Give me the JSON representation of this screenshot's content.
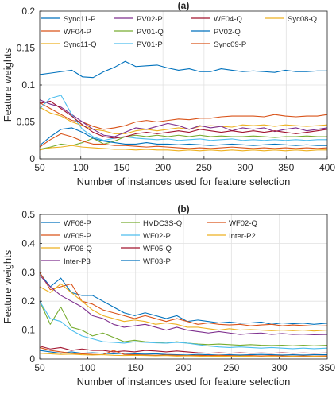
{
  "chart_data": [
    {
      "type": "line",
      "title": "(a)",
      "xlabel": "Number of instances used for feature selection",
      "ylabel": "Feature weights",
      "xlim": [
        50,
        400
      ],
      "ylim": [
        0,
        0.2
      ],
      "xticks": [
        50,
        100,
        150,
        200,
        250,
        300,
        350,
        400
      ],
      "yticks": [
        0,
        0.05,
        0.1,
        0.15,
        0.2
      ],
      "grid": true,
      "legend_placement": "top",
      "x": [
        50,
        63,
        76,
        89,
        102,
        115,
        128,
        141,
        154,
        167,
        180,
        193,
        206,
        219,
        232,
        245,
        258,
        271,
        284,
        297,
        310,
        323,
        336,
        349,
        362,
        375,
        388,
        400
      ],
      "series": [
        {
          "name": "Sync11-P",
          "color": "#0072BD",
          "values": [
            0.114,
            0.116,
            0.118,
            0.12,
            0.111,
            0.11,
            0.118,
            0.124,
            0.132,
            0.125,
            0.126,
            0.127,
            0.123,
            0.12,
            0.122,
            0.118,
            0.118,
            0.122,
            0.12,
            0.118,
            0.119,
            0.118,
            0.117,
            0.12,
            0.118,
            0.118,
            0.119,
            0.119
          ]
        },
        {
          "name": "WF04-P",
          "color": "#D95319",
          "values": [
            0.076,
            0.068,
            0.06,
            0.052,
            0.05,
            0.044,
            0.04,
            0.042,
            0.045,
            0.05,
            0.052,
            0.05,
            0.052,
            0.054,
            0.053,
            0.055,
            0.055,
            0.057,
            0.058,
            0.058,
            0.058,
            0.057,
            0.06,
            0.058,
            0.057,
            0.058,
            0.058,
            0.06
          ]
        },
        {
          "name": "Sync11-Q",
          "color": "#EDB120",
          "values": [
            0.07,
            0.062,
            0.058,
            0.05,
            0.045,
            0.04,
            0.038,
            0.034,
            0.034,
            0.038,
            0.04,
            0.038,
            0.04,
            0.042,
            0.04,
            0.044,
            0.045,
            0.044,
            0.043,
            0.046,
            0.045,
            0.046,
            0.044,
            0.046,
            0.045,
            0.044,
            0.045,
            0.046
          ]
        },
        {
          "name": "PV02-P",
          "color": "#7E2F8E",
          "values": [
            0.08,
            0.074,
            0.07,
            0.06,
            0.05,
            0.04,
            0.032,
            0.03,
            0.036,
            0.042,
            0.04,
            0.044,
            0.048,
            0.045,
            0.04,
            0.045,
            0.042,
            0.044,
            0.038,
            0.042,
            0.04,
            0.042,
            0.037,
            0.04,
            0.042,
            0.038,
            0.04,
            0.042
          ]
        },
        {
          "name": "PV01-Q",
          "color": "#77AC30",
          "values": [
            0.013,
            0.016,
            0.02,
            0.018,
            0.022,
            0.028,
            0.02,
            0.024,
            0.03,
            0.032,
            0.03,
            0.032,
            0.03,
            0.032,
            0.03,
            0.032,
            0.03,
            0.031,
            0.03,
            0.03,
            0.031,
            0.03,
            0.029,
            0.03,
            0.03,
            0.031,
            0.03,
            0.03
          ]
        },
        {
          "name": "PV01-P",
          "color": "#4DBEEE",
          "values": [
            0.068,
            0.082,
            0.086,
            0.06,
            0.04,
            0.03,
            0.025,
            0.028,
            0.03,
            0.028,
            0.027,
            0.026,
            0.027,
            0.025,
            0.026,
            0.027,
            0.025,
            0.026,
            0.027,
            0.025,
            0.026,
            0.025,
            0.026,
            0.025,
            0.026,
            0.025,
            0.026,
            0.026
          ]
        },
        {
          "name": "WF04-Q",
          "color": "#A2142F",
          "values": [
            0.075,
            0.078,
            0.068,
            0.058,
            0.046,
            0.036,
            0.03,
            0.028,
            0.03,
            0.034,
            0.036,
            0.034,
            0.036,
            0.038,
            0.036,
            0.04,
            0.038,
            0.036,
            0.038,
            0.036,
            0.038,
            0.036,
            0.038,
            0.036,
            0.034,
            0.036,
            0.038,
            0.04
          ]
        },
        {
          "name": "PV02-Q",
          "color": "#0072BD",
          "values": [
            0.018,
            0.03,
            0.04,
            0.042,
            0.036,
            0.028,
            0.024,
            0.022,
            0.02,
            0.02,
            0.022,
            0.02,
            0.02,
            0.019,
            0.02,
            0.019,
            0.018,
            0.019,
            0.02,
            0.019,
            0.018,
            0.019,
            0.02,
            0.019,
            0.018,
            0.019,
            0.018,
            0.018
          ]
        },
        {
          "name": "Sync09-P",
          "color": "#D95319",
          "values": [
            0.016,
            0.026,
            0.034,
            0.03,
            0.024,
            0.02,
            0.02,
            0.018,
            0.018,
            0.017,
            0.016,
            0.017,
            0.016,
            0.015,
            0.014,
            0.015,
            0.014,
            0.015,
            0.016,
            0.015,
            0.014,
            0.015,
            0.014,
            0.015,
            0.014,
            0.015,
            0.014,
            0.015
          ]
        },
        {
          "name": "Syc08-Q",
          "color": "#EDB120",
          "values": [
            0.012,
            0.015,
            0.016,
            0.018,
            0.016,
            0.015,
            0.014,
            0.013,
            0.013,
            0.012,
            0.013,
            0.012,
            0.012,
            0.011,
            0.012,
            0.011,
            0.012,
            0.011,
            0.012,
            0.011,
            0.012,
            0.011,
            0.012,
            0.011,
            0.012,
            0.011,
            0.012,
            0.012
          ]
        }
      ]
    },
    {
      "type": "line",
      "title": "(b)",
      "xlabel": "Number of instances used for feature selection",
      "ylabel": "Feature weights",
      "xlim": [
        50,
        350
      ],
      "ylim": [
        0,
        0.5
      ],
      "xticks": [
        50,
        100,
        150,
        200,
        250,
        300,
        350
      ],
      "yticks": [
        0,
        0.1,
        0.2,
        0.3,
        0.4,
        0.5
      ],
      "grid": true,
      "legend_placement": "top",
      "x": [
        50,
        61,
        72,
        83,
        94,
        105,
        116,
        127,
        138,
        149,
        160,
        171,
        182,
        193,
        204,
        215,
        226,
        237,
        248,
        259,
        270,
        281,
        292,
        303,
        314,
        325,
        336,
        350
      ],
      "series": [
        {
          "name": "WF06-P",
          "color": "#0072BD",
          "values": [
            0.298,
            0.25,
            0.28,
            0.23,
            0.22,
            0.22,
            0.2,
            0.18,
            0.16,
            0.15,
            0.16,
            0.15,
            0.14,
            0.15,
            0.13,
            0.135,
            0.13,
            0.125,
            0.128,
            0.124,
            0.125,
            0.128,
            0.12,
            0.125,
            0.122,
            0.124,
            0.12,
            0.124
          ]
        },
        {
          "name": "WF05-P",
          "color": "#D95319",
          "values": [
            0.3,
            0.24,
            0.25,
            0.26,
            0.2,
            0.19,
            0.17,
            0.16,
            0.15,
            0.14,
            0.15,
            0.14,
            0.13,
            0.14,
            0.13,
            0.12,
            0.125,
            0.12,
            0.118,
            0.12,
            0.115,
            0.118,
            0.12,
            0.115,
            0.118,
            0.116,
            0.114,
            0.115
          ]
        },
        {
          "name": "WF06-Q",
          "color": "#EDB120",
          "values": [
            0.25,
            0.23,
            0.26,
            0.23,
            0.2,
            0.17,
            0.15,
            0.14,
            0.13,
            0.135,
            0.13,
            0.12,
            0.125,
            0.12,
            0.11,
            0.11,
            0.105,
            0.1,
            0.105,
            0.1,
            0.102,
            0.1,
            0.098,
            0.1,
            0.098,
            0.1,
            0.097,
            0.1
          ]
        },
        {
          "name": "Inter-P3",
          "color": "#7E2F8E",
          "values": [
            0.29,
            0.25,
            0.22,
            0.2,
            0.18,
            0.15,
            0.14,
            0.12,
            0.11,
            0.115,
            0.12,
            0.11,
            0.1,
            0.11,
            0.1,
            0.095,
            0.09,
            0.095,
            0.09,
            0.085,
            0.088,
            0.09,
            0.085,
            0.088,
            0.085,
            0.086,
            0.084,
            0.085
          ]
        },
        {
          "name": "HVDC3S-Q",
          "color": "#77AC30",
          "values": [
            0.2,
            0.12,
            0.18,
            0.11,
            0.1,
            0.08,
            0.09,
            0.075,
            0.06,
            0.065,
            0.06,
            0.058,
            0.055,
            0.06,
            0.055,
            0.052,
            0.05,
            0.052,
            0.05,
            0.048,
            0.05,
            0.048,
            0.047,
            0.048,
            0.046,
            0.048,
            0.046,
            0.048
          ]
        },
        {
          "name": "WF02-P",
          "color": "#4DBEEE",
          "values": [
            0.2,
            0.14,
            0.13,
            0.1,
            0.08,
            0.07,
            0.06,
            0.058,
            0.055,
            0.06,
            0.058,
            0.056,
            0.055,
            0.058,
            0.055,
            0.05,
            0.045,
            0.042,
            0.04,
            0.042,
            0.04,
            0.038,
            0.04,
            0.038,
            0.036,
            0.038,
            0.036,
            0.038
          ]
        },
        {
          "name": "WF05-Q",
          "color": "#A2142F",
          "values": [
            0.045,
            0.035,
            0.04,
            0.03,
            0.035,
            0.03,
            0.03,
            0.025,
            0.028,
            0.025,
            0.03,
            0.028,
            0.025,
            0.028,
            0.025,
            0.022,
            0.02,
            0.022,
            0.02,
            0.022,
            0.02,
            0.021,
            0.02,
            0.022,
            0.02,
            0.021,
            0.02,
            0.021
          ]
        },
        {
          "name": "WF03-P",
          "color": "#0072BD",
          "values": [
            0.03,
            0.025,
            0.02,
            0.025,
            0.02,
            0.022,
            0.02,
            0.018,
            0.02,
            0.018,
            0.017,
            0.018,
            0.016,
            0.015,
            0.014,
            0.016,
            0.015,
            0.014,
            0.015,
            0.014,
            0.015,
            0.016,
            0.015,
            0.014,
            0.015,
            0.014,
            0.015,
            0.015
          ]
        },
        {
          "name": "WF02-Q",
          "color": "#D95319",
          "values": [
            0.04,
            0.03,
            0.025,
            0.02,
            0.018,
            0.016,
            0.015,
            0.03,
            0.016,
            0.015,
            0.014,
            0.013,
            0.014,
            0.013,
            0.012,
            0.013,
            0.012,
            0.013,
            0.012,
            0.011,
            0.012,
            0.011,
            0.012,
            0.011,
            0.01,
            0.011,
            0.01,
            0.011
          ]
        },
        {
          "name": "Inter-P2",
          "color": "#EDB120",
          "values": [
            0.02,
            0.018,
            0.016,
            0.017,
            0.015,
            0.014,
            0.015,
            0.013,
            0.012,
            0.013,
            0.012,
            0.011,
            0.012,
            0.01,
            0.011,
            0.01,
            0.009,
            0.01,
            0.009,
            0.01,
            0.009,
            0.008,
            0.009,
            0.008,
            0.009,
            0.008,
            0.009,
            0.008
          ]
        }
      ]
    }
  ]
}
